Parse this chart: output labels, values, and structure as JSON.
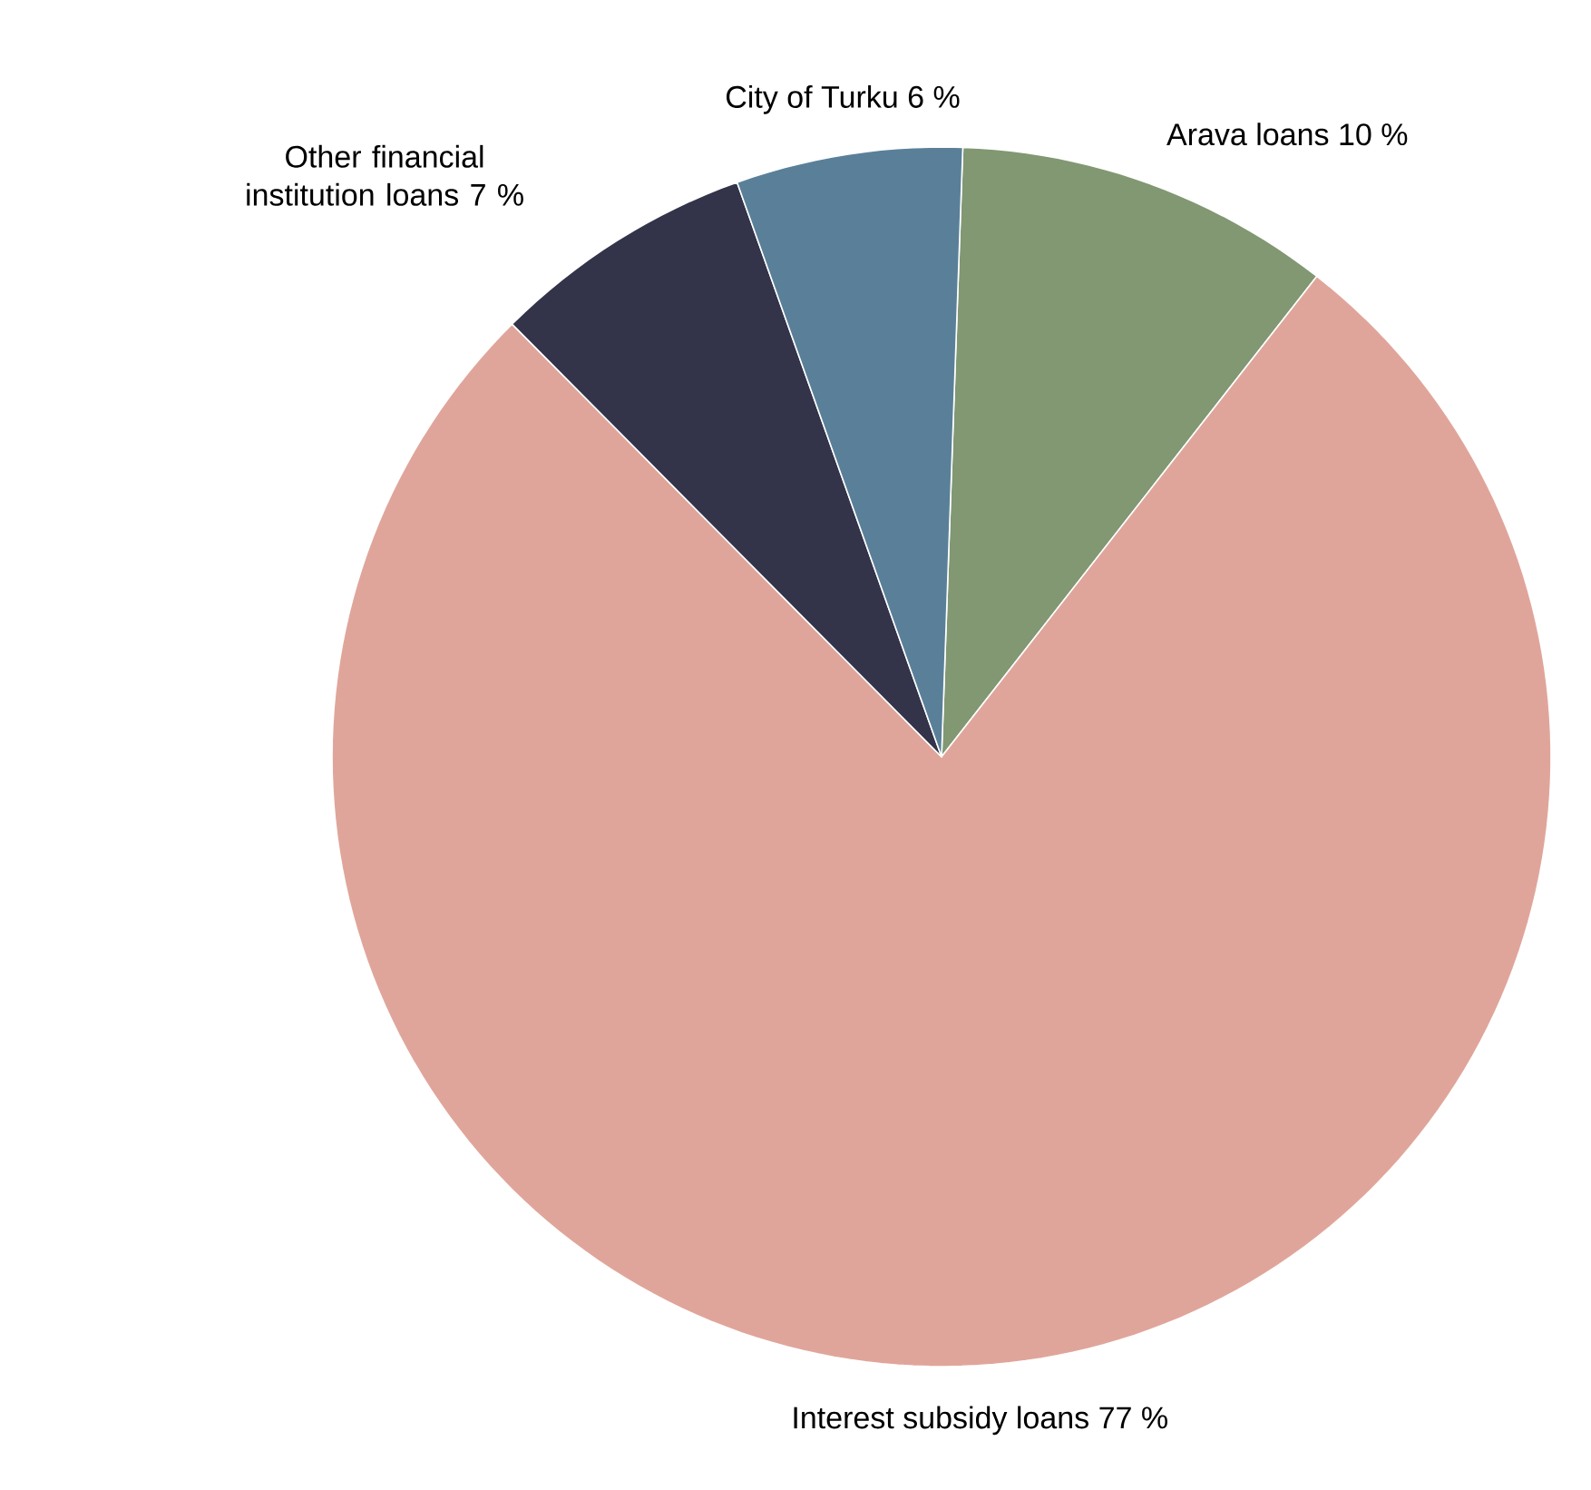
{
  "chart_data": {
    "type": "pie",
    "categories": [
      "Arava loans",
      "Interest subsidy loans",
      "Other financial institution loans",
      "City of Turku"
    ],
    "values": [
      10,
      77,
      7,
      6
    ],
    "value_labels": [
      "10 %",
      "77 %",
      "7 %",
      "6 %"
    ],
    "colors": [
      "#819873",
      "#e0a59a",
      "#33334a",
      "#5a8099"
    ]
  }
}
